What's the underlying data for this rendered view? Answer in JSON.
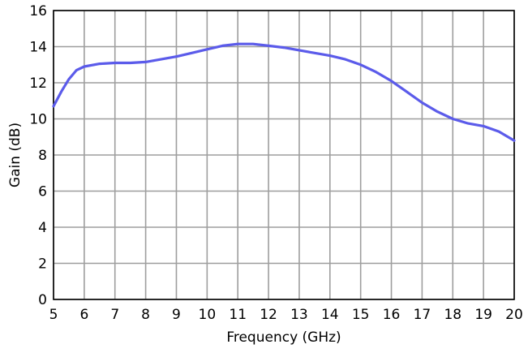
{
  "chart_data": {
    "type": "line",
    "title": "",
    "xlabel": "Frequency (GHz)",
    "ylabel": "Gain (dB)",
    "xlim": [
      5,
      20
    ],
    "ylim": [
      0,
      16
    ],
    "x_ticks": [
      5,
      6,
      7,
      8,
      9,
      10,
      11,
      12,
      13,
      14,
      15,
      16,
      17,
      18,
      19,
      20
    ],
    "y_ticks": [
      0,
      2,
      4,
      6,
      8,
      10,
      12,
      14,
      16
    ],
    "grid": true,
    "legend": "none",
    "series": [
      {
        "color": "#5b5bea",
        "x": [
          5.0,
          5.25,
          5.5,
          5.75,
          6.0,
          6.5,
          7.0,
          7.5,
          8.0,
          8.5,
          9.0,
          9.5,
          10.0,
          10.5,
          11.0,
          11.5,
          12.0,
          12.5,
          13.0,
          13.5,
          14.0,
          14.5,
          15.0,
          15.5,
          16.0,
          16.5,
          17.0,
          17.5,
          18.0,
          18.5,
          19.0,
          19.5,
          20.0
        ],
        "y": [
          10.7,
          11.5,
          12.2,
          12.7,
          12.9,
          13.05,
          13.1,
          13.1,
          13.15,
          13.3,
          13.45,
          13.65,
          13.85,
          14.05,
          14.15,
          14.15,
          14.05,
          13.95,
          13.8,
          13.65,
          13.5,
          13.3,
          13.0,
          12.6,
          12.1,
          11.5,
          10.9,
          10.4,
          10.0,
          9.75,
          9.6,
          9.3,
          8.8
        ]
      }
    ]
  }
}
